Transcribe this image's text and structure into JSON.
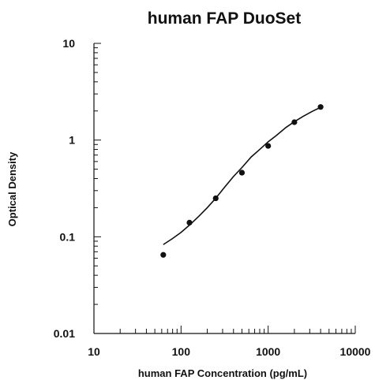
{
  "chart_data": {
    "type": "scatter",
    "title": "human FAP DuoSet",
    "xlabel": "human FAP Concentration (pg/mL)",
    "ylabel": "Optical Density",
    "x_scale": "log",
    "y_scale": "log",
    "xlim": [
      10,
      10000
    ],
    "ylim": [
      0.01,
      10
    ],
    "x_ticks": [
      10,
      100,
      1000,
      10000
    ],
    "x_tick_labels": [
      "10",
      "100",
      "1000",
      "10000"
    ],
    "y_ticks": [
      0.01,
      0.1,
      1,
      10
    ],
    "y_tick_labels": [
      "0.01",
      "0.1",
      "1",
      "10"
    ],
    "grid": false,
    "series": [
      {
        "x": [
          62.5,
          125,
          250,
          500,
          1000,
          2000,
          4000
        ],
        "y": [
          0.065,
          0.14,
          0.25,
          0.46,
          0.87,
          1.53,
          2.2
        ]
      }
    ],
    "fit_curve": {
      "x": [
        62.5,
        80,
        100,
        125,
        160,
        200,
        250,
        320,
        400,
        500,
        640,
        800,
        1000,
        1250,
        1600,
        2000,
        2500,
        3200,
        4000
      ],
      "y": [
        0.083,
        0.096,
        0.111,
        0.132,
        0.163,
        0.2,
        0.25,
        0.33,
        0.42,
        0.52,
        0.67,
        0.8,
        0.96,
        1.12,
        1.35,
        1.55,
        1.75,
        1.98,
        2.18
      ]
    }
  }
}
